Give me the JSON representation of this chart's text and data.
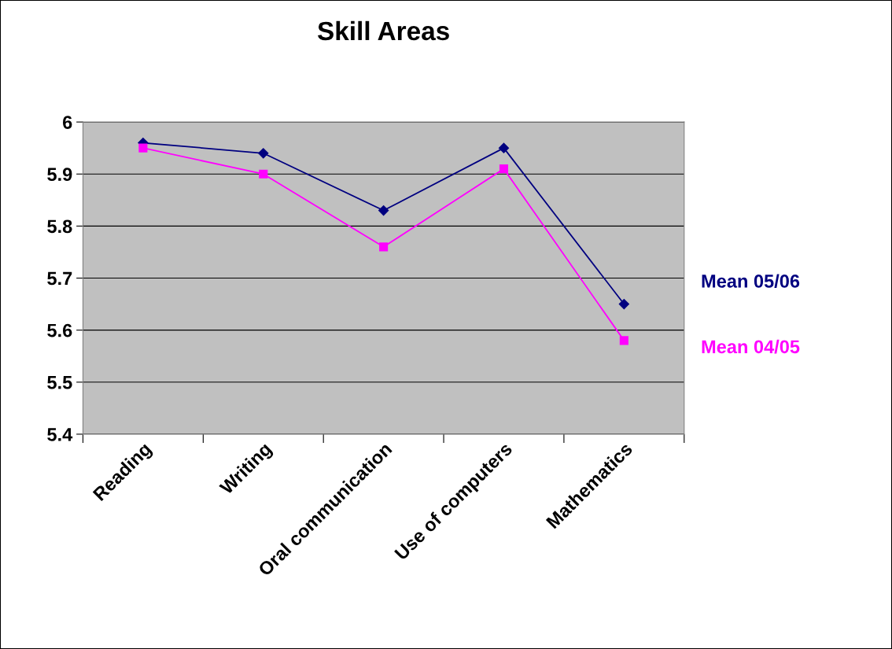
{
  "chart_data": {
    "type": "line",
    "title": "Skill Areas",
    "categories": [
      "Reading",
      "Writing",
      "Oral communication",
      "Use of computers",
      "Mathematics"
    ],
    "series": [
      {
        "name": "Mean 05/06",
        "color": "#000080",
        "marker": "diamond",
        "values": [
          5.96,
          5.94,
          5.83,
          5.95,
          5.65
        ]
      },
      {
        "name": "Mean 04/05",
        "color": "#ff00ff",
        "marker": "square",
        "values": [
          5.95,
          5.9,
          5.76,
          5.91,
          5.58
        ]
      }
    ],
    "ylim": [
      5.4,
      6
    ],
    "yticks": [
      5.4,
      5.5,
      5.6,
      5.7,
      5.8,
      5.9,
      6
    ],
    "grid": "y",
    "legend": "right",
    "line_style": "solid"
  }
}
